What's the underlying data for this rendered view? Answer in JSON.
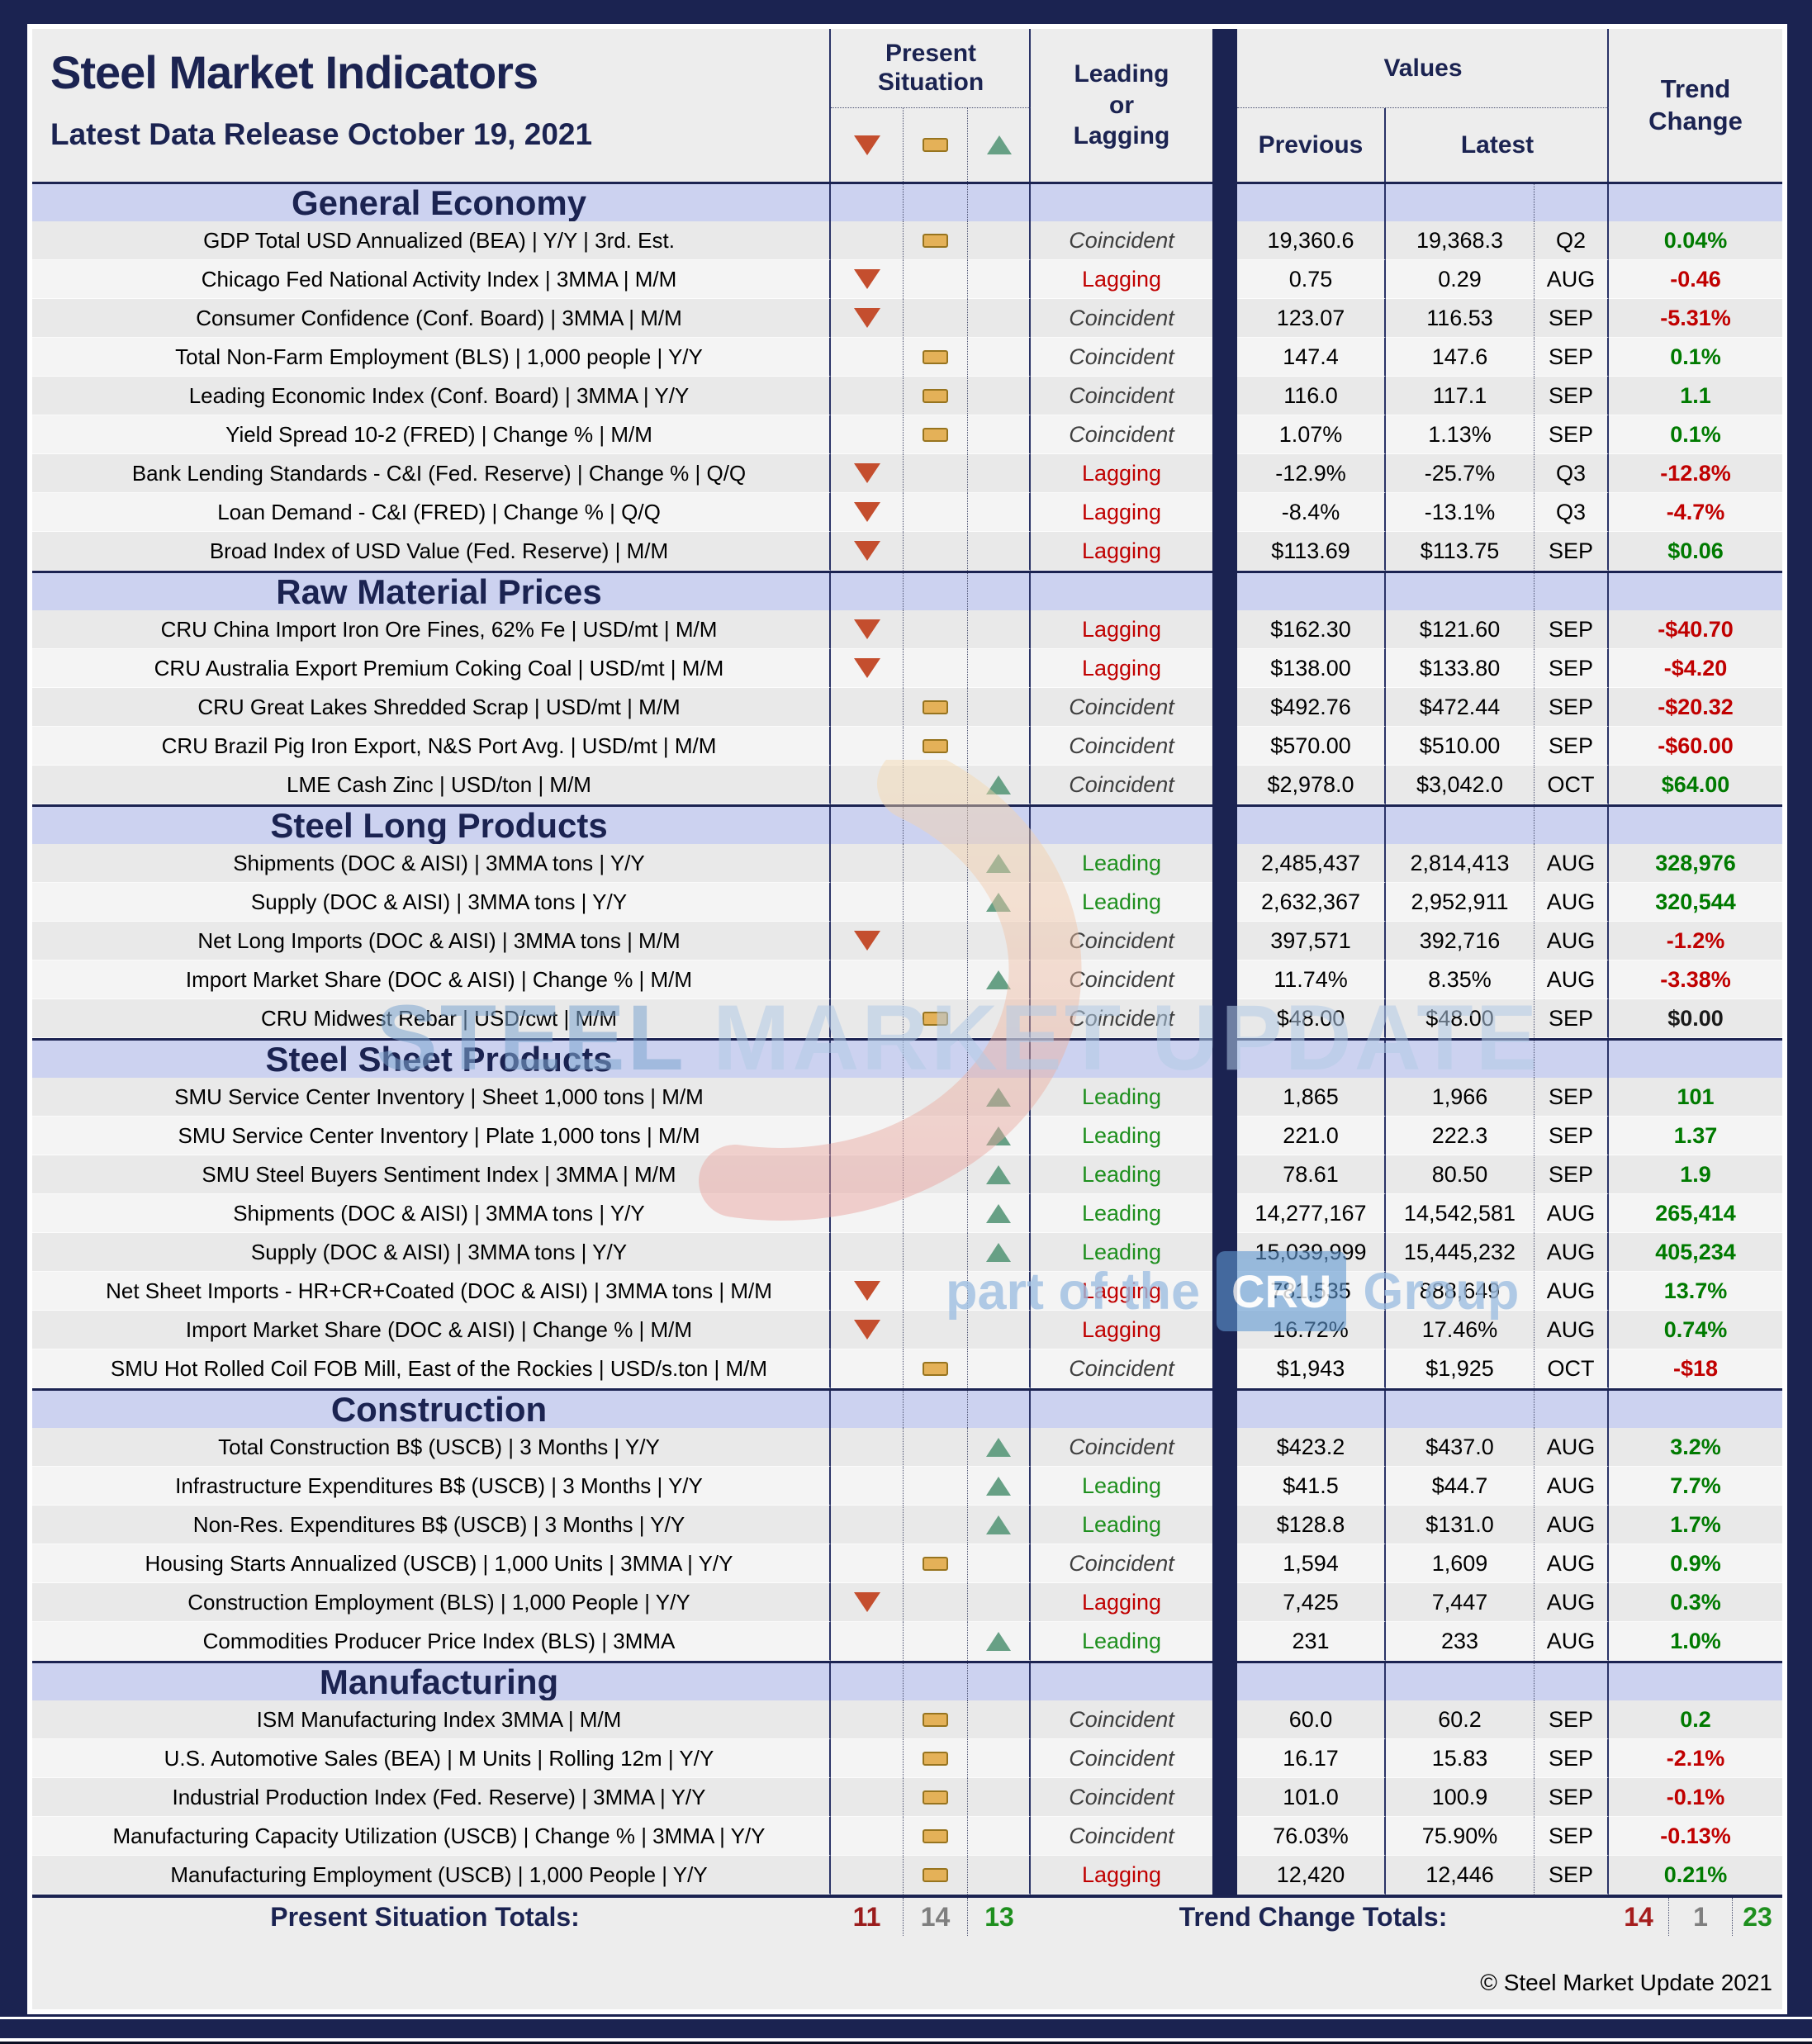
{
  "header": {
    "title": "Steel Market Indicators",
    "subtitle": "Latest Data Release October 19, 2021",
    "col_present_situation": "Present Situation",
    "col_leading_lagging": "Leading or Lagging",
    "col_values": "Values",
    "col_previous": "Previous",
    "col_latest": "Latest",
    "col_trend_change": "Trend Change"
  },
  "icons": {
    "down": "red-down-triangle-icon",
    "neutral": "gold-dash-icon",
    "up": "green-up-triangle-icon"
  },
  "colors": {
    "navy": "#1b2351",
    "section_band": "#ccd2f0",
    "down_red": "#c44e2e",
    "neutral_gold": "#e4b158",
    "up_green": "#67a085",
    "lagging_red": "#c00000",
    "leading_green": "#1e8f1e",
    "trend_green": "#007a00",
    "trend_red": "#c00000"
  },
  "sections": [
    {
      "name": "General Economy",
      "rows": [
        {
          "indicator": "GDP Total USD Annualized (BEA) | Y/Y | 3rd. Est.",
          "situation": "neutral",
          "cycle": "Coincident",
          "previous": "19,360.6",
          "latest": "19,368.3",
          "period": "Q2",
          "trend": "0.04%",
          "trend_color": "green"
        },
        {
          "indicator": "Chicago Fed National Activity Index | 3MMA | M/M",
          "situation": "down",
          "cycle": "Lagging",
          "previous": "0.75",
          "latest": "0.29",
          "period": "AUG",
          "trend": "-0.46",
          "trend_color": "red"
        },
        {
          "indicator": "Consumer Confidence (Conf. Board) | 3MMA | M/M",
          "situation": "down",
          "cycle": "Coincident",
          "previous": "123.07",
          "latest": "116.53",
          "period": "SEP",
          "trend": "-5.31%",
          "trend_color": "red"
        },
        {
          "indicator": "Total Non-Farm Employment (BLS) | 1,000 people | Y/Y",
          "situation": "neutral",
          "cycle": "Coincident",
          "previous": "147.4",
          "latest": "147.6",
          "period": "SEP",
          "trend": "0.1%",
          "trend_color": "green"
        },
        {
          "indicator": "Leading Economic Index (Conf. Board) | 3MMA | Y/Y",
          "situation": "neutral",
          "cycle": "Coincident",
          "previous": "116.0",
          "latest": "117.1",
          "period": "SEP",
          "trend": "1.1",
          "trend_color": "green"
        },
        {
          "indicator": "Yield Spread 10-2 (FRED) | Change % | M/M",
          "situation": "neutral",
          "cycle": "Coincident",
          "previous": "1.07%",
          "latest": "1.13%",
          "period": "SEP",
          "trend": "0.1%",
          "trend_color": "green"
        },
        {
          "indicator": "Bank Lending Standards - C&I (Fed. Reserve) | Change % | Q/Q",
          "situation": "down",
          "cycle": "Lagging",
          "previous": "-12.9%",
          "latest": "-25.7%",
          "period": "Q3",
          "trend": "-12.8%",
          "trend_color": "red"
        },
        {
          "indicator": "Loan Demand - C&I (FRED) | Change % | Q/Q",
          "situation": "down",
          "cycle": "Lagging",
          "previous": "-8.4%",
          "latest": "-13.1%",
          "period": "Q3",
          "trend": "-4.7%",
          "trend_color": "red"
        },
        {
          "indicator": "Broad Index of USD Value (Fed. Reserve) | M/M",
          "situation": "down",
          "cycle": "Lagging",
          "previous": "$113.69",
          "latest": "$113.75",
          "period": "SEP",
          "trend": "$0.06",
          "trend_color": "green"
        }
      ]
    },
    {
      "name": "Raw Material Prices",
      "rows": [
        {
          "indicator": "CRU China Import Iron Ore Fines, 62% Fe | USD/mt | M/M",
          "situation": "down",
          "cycle": "Lagging",
          "previous": "$162.30",
          "latest": "$121.60",
          "period": "SEP",
          "trend": "-$40.70",
          "trend_color": "red"
        },
        {
          "indicator": "CRU Australia Export Premium Coking Coal | USD/mt | M/M",
          "situation": "down",
          "cycle": "Lagging",
          "previous": "$138.00",
          "latest": "$133.80",
          "period": "SEP",
          "trend": "-$4.20",
          "trend_color": "red"
        },
        {
          "indicator": "CRU Great Lakes Shredded Scrap | USD/mt | M/M",
          "situation": "neutral",
          "cycle": "Coincident",
          "previous": "$492.76",
          "latest": "$472.44",
          "period": "SEP",
          "trend": "-$20.32",
          "trend_color": "red"
        },
        {
          "indicator": "CRU Brazil Pig Iron Export, N&S Port Avg. | USD/mt | M/M",
          "situation": "neutral",
          "cycle": "Coincident",
          "previous": "$570.00",
          "latest": "$510.00",
          "period": "SEP",
          "trend": "-$60.00",
          "trend_color": "red"
        },
        {
          "indicator": "LME Cash Zinc | USD/ton | M/M",
          "situation": "up",
          "cycle": "Coincident",
          "previous": "$2,978.0",
          "latest": "$3,042.0",
          "period": "OCT",
          "trend": "$64.00",
          "trend_color": "green"
        }
      ]
    },
    {
      "name": "Steel Long Products",
      "rows": [
        {
          "indicator": "Shipments (DOC & AISI) | 3MMA tons | Y/Y",
          "situation": "up",
          "cycle": "Leading",
          "previous": "2,485,437",
          "latest": "2,814,413",
          "period": "AUG",
          "trend": "328,976",
          "trend_color": "green"
        },
        {
          "indicator": "Supply (DOC & AISI) | 3MMA tons | Y/Y",
          "situation": "up",
          "cycle": "Leading",
          "previous": "2,632,367",
          "latest": "2,952,911",
          "period": "AUG",
          "trend": "320,544",
          "trend_color": "green"
        },
        {
          "indicator": "Net Long Imports (DOC & AISI) | 3MMA tons | M/M",
          "situation": "down",
          "cycle": "Coincident",
          "previous": "397,571",
          "latest": "392,716",
          "period": "AUG",
          "trend": "-1.2%",
          "trend_color": "red"
        },
        {
          "indicator": "Import Market Share (DOC & AISI) | Change % | M/M",
          "situation": "up",
          "cycle": "Coincident",
          "previous": "11.74%",
          "latest": "8.35%",
          "period": "AUG",
          "trend": "-3.38%",
          "trend_color": "red"
        },
        {
          "indicator": "CRU Midwest Rebar | USD/cwt | M/M",
          "situation": "neutral",
          "cycle": "Coincident",
          "previous": "$48.00",
          "latest": "$48.00",
          "period": "SEP",
          "trend": "$0.00",
          "trend_color": "black"
        }
      ]
    },
    {
      "name": "Steel Sheet Products",
      "rows": [
        {
          "indicator": "SMU Service Center Inventory | Sheet 1,000 tons | M/M",
          "situation": "up",
          "cycle": "Leading",
          "previous": "1,865",
          "latest": "1,966",
          "period": "SEP",
          "trend": "101",
          "trend_color": "green"
        },
        {
          "indicator": "SMU Service Center Inventory | Plate 1,000 tons | M/M",
          "situation": "up",
          "cycle": "Leading",
          "previous": "221.0",
          "latest": "222.3",
          "period": "SEP",
          "trend": "1.37",
          "trend_color": "green"
        },
        {
          "indicator": "SMU Steel Buyers Sentiment Index | 3MMA | M/M",
          "situation": "up",
          "cycle": "Leading",
          "previous": "78.61",
          "latest": "80.50",
          "period": "SEP",
          "trend": "1.9",
          "trend_color": "green"
        },
        {
          "indicator": "Shipments (DOC & AISI) | 3MMA tons | Y/Y",
          "situation": "up",
          "cycle": "Leading",
          "previous": "14,277,167",
          "latest": "14,542,581",
          "period": "AUG",
          "trend": "265,414",
          "trend_color": "green"
        },
        {
          "indicator": "Supply (DOC & AISI) | 3MMA tons | Y/Y",
          "situation": "up",
          "cycle": "Leading",
          "previous": "15,039,999",
          "latest": "15,445,232",
          "period": "AUG",
          "trend": "405,234",
          "trend_color": "green"
        },
        {
          "indicator": "Net Sheet Imports - HR+CR+Coated (DOC & AISI) | 3MMA tons | M/M",
          "situation": "down",
          "cycle": "Lagging",
          "previous": "781,535",
          "latest": "888,649",
          "period": "AUG",
          "trend": "13.7%",
          "trend_color": "green"
        },
        {
          "indicator": "Import Market Share (DOC & AISI) | Change % | M/M",
          "situation": "down",
          "cycle": "Lagging",
          "previous": "16.72%",
          "latest": "17.46%",
          "period": "AUG",
          "trend": "0.74%",
          "trend_color": "green"
        },
        {
          "indicator": "SMU Hot Rolled Coil FOB Mill, East of the Rockies | USD/s.ton | M/M",
          "situation": "neutral",
          "cycle": "Coincident",
          "previous": "$1,943",
          "latest": "$1,925",
          "period": "OCT",
          "trend": "-$18",
          "trend_color": "red"
        }
      ]
    },
    {
      "name": "Construction",
      "rows": [
        {
          "indicator": "Total Construction B$ (USCB) | 3 Months | Y/Y",
          "situation": "up",
          "cycle": "Coincident",
          "previous": "$423.2",
          "latest": "$437.0",
          "period": "AUG",
          "trend": "3.2%",
          "trend_color": "green"
        },
        {
          "indicator": "Infrastructure Expenditures B$ (USCB) | 3 Months | Y/Y",
          "situation": "up",
          "cycle": "Leading",
          "previous": "$41.5",
          "latest": "$44.7",
          "period": "AUG",
          "trend": "7.7%",
          "trend_color": "green"
        },
        {
          "indicator": "Non-Res. Expenditures B$ (USCB) | 3 Months | Y/Y",
          "situation": "up",
          "cycle": "Leading",
          "previous": "$128.8",
          "latest": "$131.0",
          "period": "AUG",
          "trend": "1.7%",
          "trend_color": "green"
        },
        {
          "indicator": "Housing Starts Annualized (USCB) | 1,000 Units | 3MMA | Y/Y",
          "situation": "neutral",
          "cycle": "Coincident",
          "previous": "1,594",
          "latest": "1,609",
          "period": "AUG",
          "trend": "0.9%",
          "trend_color": "green"
        },
        {
          "indicator": "Construction Employment (BLS) | 1,000 People | Y/Y",
          "situation": "down",
          "cycle": "Lagging",
          "previous": "7,425",
          "latest": "7,447",
          "period": "AUG",
          "trend": "0.3%",
          "trend_color": "green"
        },
        {
          "indicator": "Commodities Producer Price Index (BLS) | 3MMA",
          "situation": "up",
          "cycle": "Leading",
          "previous": "231",
          "latest": "233",
          "period": "AUG",
          "trend": "1.0%",
          "trend_color": "green"
        }
      ]
    },
    {
      "name": "Manufacturing",
      "rows": [
        {
          "indicator": "ISM Manufacturing Index 3MMA | M/M",
          "situation": "neutral",
          "cycle": "Coincident",
          "previous": "60.0",
          "latest": "60.2",
          "period": "SEP",
          "trend": "0.2",
          "trend_color": "green"
        },
        {
          "indicator": "U.S. Automotive Sales (BEA) | M Units | Rolling 12m | Y/Y",
          "situation": "neutral",
          "cycle": "Coincident",
          "previous": "16.17",
          "latest": "15.83",
          "period": "SEP",
          "trend": "-2.1%",
          "trend_color": "red"
        },
        {
          "indicator": "Industrial Production Index (Fed. Reserve) | 3MMA | Y/Y",
          "situation": "neutral",
          "cycle": "Coincident",
          "previous": "101.0",
          "latest": "100.9",
          "period": "SEP",
          "trend": "-0.1%",
          "trend_color": "red"
        },
        {
          "indicator": "Manufacturing Capacity Utilization (USCB) | Change % | 3MMA | Y/Y",
          "situation": "neutral",
          "cycle": "Coincident",
          "previous": "76.03%",
          "latest": "75.90%",
          "period": "SEP",
          "trend": "-0.13%",
          "trend_color": "red"
        },
        {
          "indicator": "Manufacturing Employment (USCB) | 1,000 People | Y/Y",
          "situation": "neutral",
          "cycle": "Lagging",
          "previous": "12,420",
          "latest": "12,446",
          "period": "SEP",
          "trend": "0.21%",
          "trend_color": "green"
        }
      ]
    }
  ],
  "totals": {
    "present_label": "Present Situation Totals:",
    "present": {
      "down": "11",
      "neutral": "14",
      "up": "13"
    },
    "trend_label": "Trend Change Totals:",
    "trend": {
      "down": "14",
      "neutral": "1",
      "up": "23"
    }
  },
  "footer": {
    "copyright": "© Steel Market Update 2021"
  },
  "watermark": {
    "steel": "STEEL",
    "rest": " MARKET UPDATE",
    "part": "part of the",
    "cru": "CRU",
    "group": "Group"
  }
}
